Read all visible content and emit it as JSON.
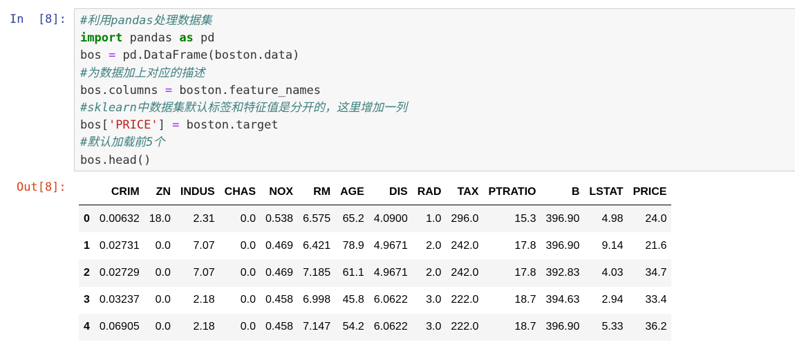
{
  "input_cell": {
    "prompt": "In  [8]:",
    "lines": [
      [
        {
          "t": "#利用pandas处理数据集",
          "c": "cm"
        }
      ],
      [
        {
          "t": "import",
          "c": "kw"
        },
        {
          "t": " pandas ",
          "c": ""
        },
        {
          "t": "as",
          "c": "kw"
        },
        {
          "t": " pd",
          "c": ""
        }
      ],
      [
        {
          "t": "bos ",
          "c": ""
        },
        {
          "t": "=",
          "c": "op"
        },
        {
          "t": " pd.DataFrame(boston.data)",
          "c": ""
        }
      ],
      [
        {
          "t": "#为数据加上对应的描述",
          "c": "cm"
        }
      ],
      [
        {
          "t": "bos.columns ",
          "c": ""
        },
        {
          "t": "=",
          "c": "op"
        },
        {
          "t": " boston.feature_names",
          "c": ""
        }
      ],
      [
        {
          "t": "#sklearn中数据集默认标签和特征值是分开的，这里增加一列",
          "c": "cm"
        }
      ],
      [
        {
          "t": "bos[",
          "c": ""
        },
        {
          "t": "'PRICE'",
          "c": "st"
        },
        {
          "t": "] ",
          "c": ""
        },
        {
          "t": "=",
          "c": "op"
        },
        {
          "t": " boston.target",
          "c": ""
        }
      ],
      [
        {
          "t": "#默认加载前5个",
          "c": "cm"
        }
      ],
      [
        {
          "t": "bos.head()",
          "c": ""
        }
      ]
    ]
  },
  "output_cell": {
    "prompt": "Out[8]:",
    "table": {
      "columns": [
        "",
        "CRIM",
        "ZN",
        "INDUS",
        "CHAS",
        "NOX",
        "RM",
        "AGE",
        "DIS",
        "RAD",
        "TAX",
        "PTRATIO",
        "B",
        "LSTAT",
        "PRICE"
      ],
      "rows": [
        [
          "0",
          "0.00632",
          "18.0",
          "2.31",
          "0.0",
          "0.538",
          "6.575",
          "65.2",
          "4.0900",
          "1.0",
          "296.0",
          "15.3",
          "396.90",
          "4.98",
          "24.0"
        ],
        [
          "1",
          "0.02731",
          "0.0",
          "7.07",
          "0.0",
          "0.469",
          "6.421",
          "78.9",
          "4.9671",
          "2.0",
          "242.0",
          "17.8",
          "396.90",
          "9.14",
          "21.6"
        ],
        [
          "2",
          "0.02729",
          "0.0",
          "7.07",
          "0.0",
          "0.469",
          "7.185",
          "61.1",
          "4.9671",
          "2.0",
          "242.0",
          "17.8",
          "392.83",
          "4.03",
          "34.7"
        ],
        [
          "3",
          "0.03237",
          "0.0",
          "2.18",
          "0.0",
          "0.458",
          "6.998",
          "45.8",
          "6.0622",
          "3.0",
          "222.0",
          "18.7",
          "394.63",
          "2.94",
          "33.4"
        ],
        [
          "4",
          "0.06905",
          "0.0",
          "2.18",
          "0.0",
          "0.458",
          "7.147",
          "54.2",
          "6.0622",
          "3.0",
          "222.0",
          "18.7",
          "396.90",
          "5.33",
          "36.2"
        ]
      ]
    }
  }
}
